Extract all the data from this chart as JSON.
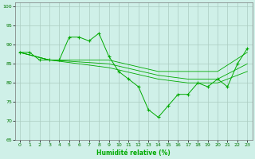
{
  "title": "",
  "xlabel": "Humidité relative (%)",
  "ylabel": "",
  "bg_color": "#cff0e8",
  "grid_color": "#aaccc0",
  "line_color": "#00aa00",
  "marker_color": "#00aa00",
  "xlim": [
    -0.5,
    23.5
  ],
  "ylim": [
    65,
    101
  ],
  "yticks": [
    65,
    70,
    75,
    80,
    85,
    90,
    95,
    100
  ],
  "xticks": [
    0,
    1,
    2,
    3,
    4,
    5,
    6,
    7,
    8,
    9,
    10,
    11,
    12,
    13,
    14,
    15,
    16,
    17,
    18,
    19,
    20,
    21,
    22,
    23
  ],
  "series": [
    {
      "x": [
        0,
        1,
        2,
        3,
        4,
        5,
        6,
        7,
        8,
        9,
        10,
        11,
        12,
        13,
        14,
        15,
        16,
        17,
        18,
        19,
        20,
        21,
        22,
        23
      ],
      "y": [
        88,
        88,
        86,
        86,
        86,
        92,
        92,
        91,
        93,
        87,
        83,
        81,
        79,
        73,
        71,
        74,
        77,
        77,
        80,
        79,
        81,
        79,
        85,
        89
      ],
      "has_markers": true
    },
    {
      "x": [
        0,
        3,
        9,
        14,
        17,
        20,
        23
      ],
      "y": [
        88,
        86,
        86,
        83,
        83,
        83,
        88
      ],
      "has_markers": false
    },
    {
      "x": [
        0,
        3,
        9,
        14,
        17,
        20,
        23
      ],
      "y": [
        88,
        86,
        85,
        82,
        81,
        81,
        85
      ],
      "has_markers": false
    },
    {
      "x": [
        0,
        3,
        9,
        14,
        17,
        20,
        23
      ],
      "y": [
        88,
        86,
        84,
        81,
        80,
        80,
        83
      ],
      "has_markers": false
    }
  ]
}
